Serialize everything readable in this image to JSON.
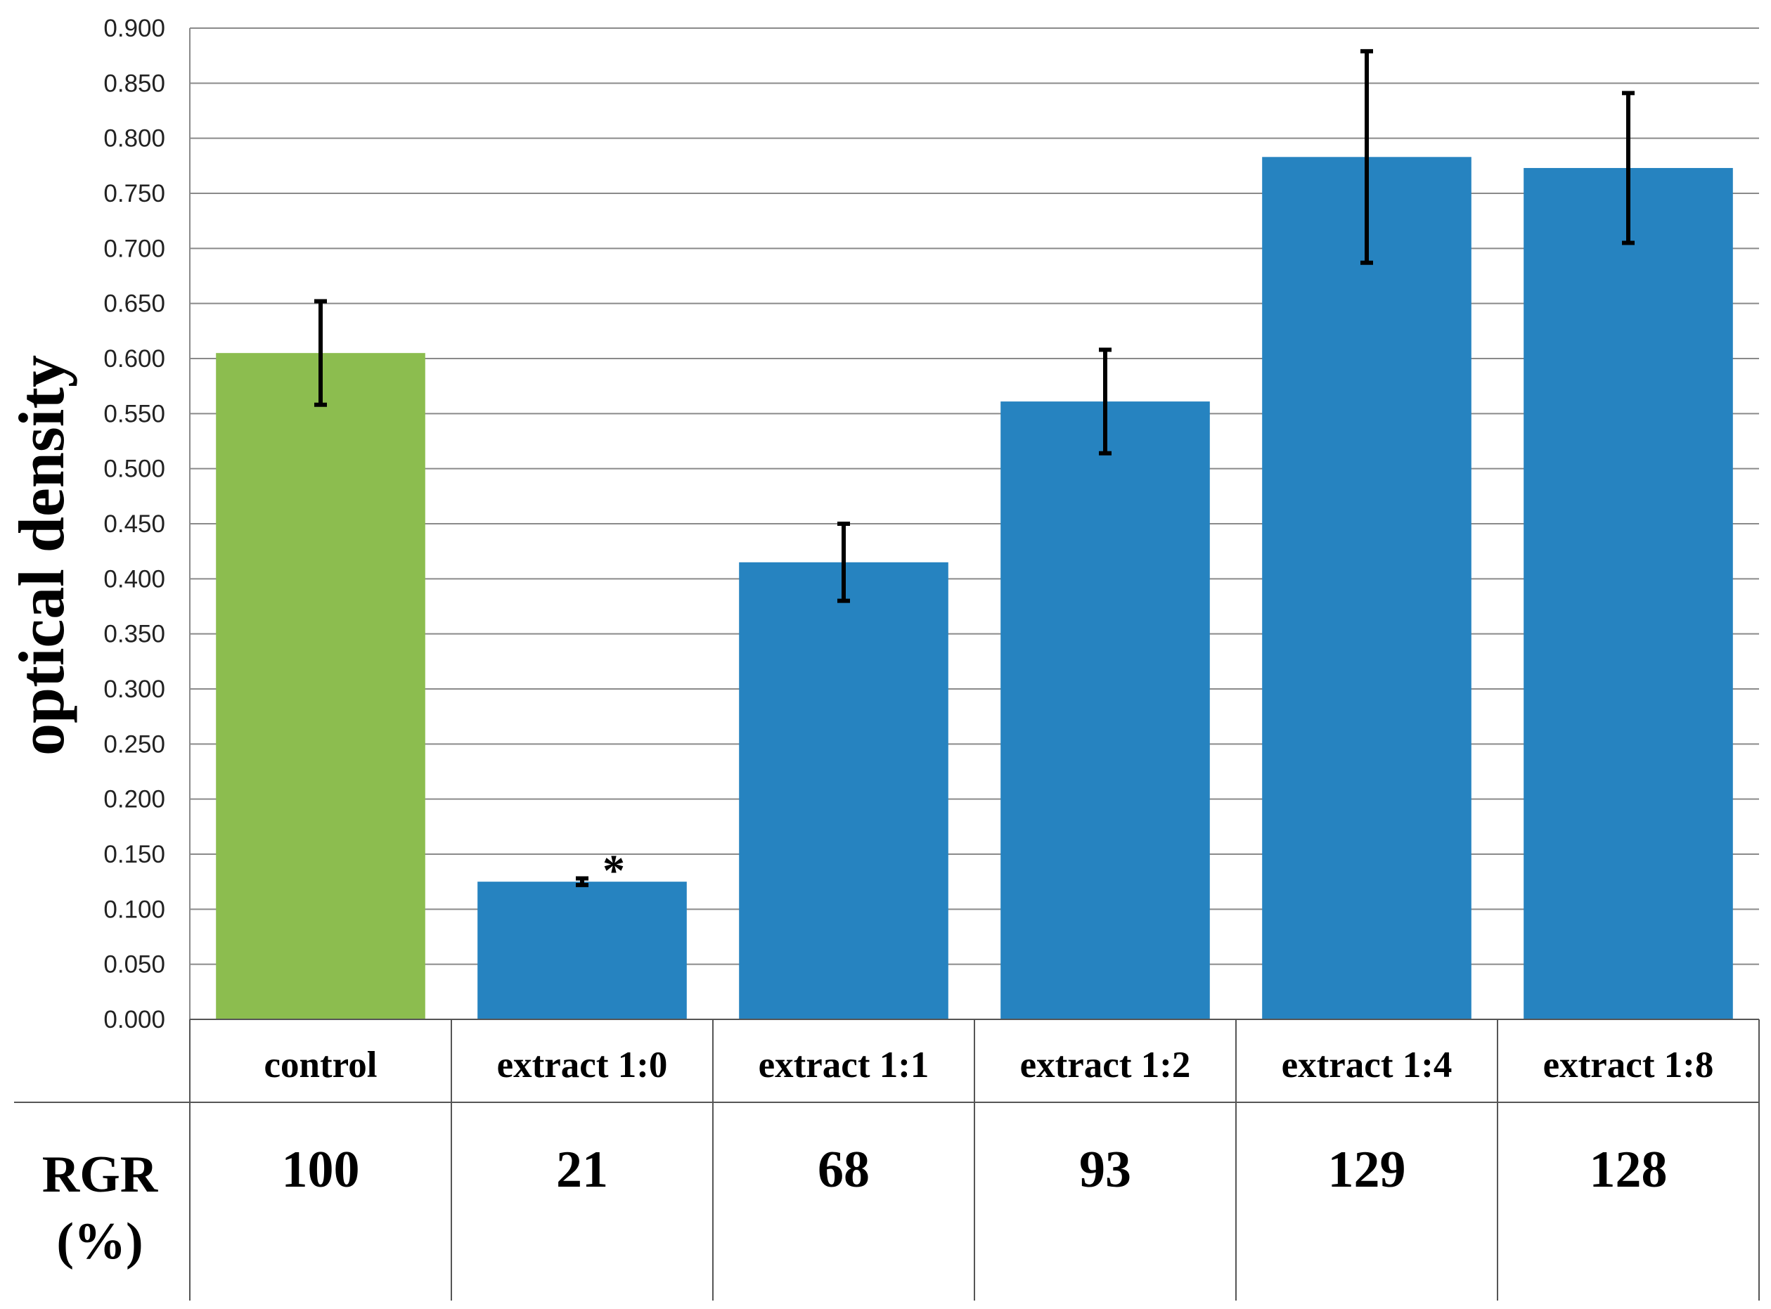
{
  "chart_data": {
    "type": "bar",
    "ylabel": "optical density",
    "ylim": [
      0,
      0.9
    ],
    "ytick_step": 0.05,
    "yticks": [
      "0.000",
      "0.050",
      "0.100",
      "0.150",
      "0.200",
      "0.250",
      "0.300",
      "0.350",
      "0.400",
      "0.450",
      "0.500",
      "0.550",
      "0.600",
      "0.650",
      "0.700",
      "0.750",
      "0.800",
      "0.850",
      "0.900"
    ],
    "grid": true,
    "categories": [
      "control",
      "extract 1:0",
      "extract 1:1",
      "extract 1:2",
      "extract 1:4",
      "extract 1:8"
    ],
    "values": [
      0.605,
      0.125,
      0.415,
      0.561,
      0.783,
      0.773
    ],
    "errors": [
      0.047,
      0.003,
      0.035,
      0.047,
      0.096,
      0.068
    ],
    "colors": [
      "#8cbd4f",
      "#2683c0",
      "#2683c0",
      "#2683c0",
      "#2683c0",
      "#2683c0"
    ],
    "annotations": [
      {
        "category": "extract 1:0",
        "text": "*"
      }
    ],
    "table": {
      "row_label": [
        "RGR",
        "(%)"
      ],
      "values": [
        "100",
        "21",
        "68",
        "93",
        "129",
        "128"
      ]
    }
  }
}
